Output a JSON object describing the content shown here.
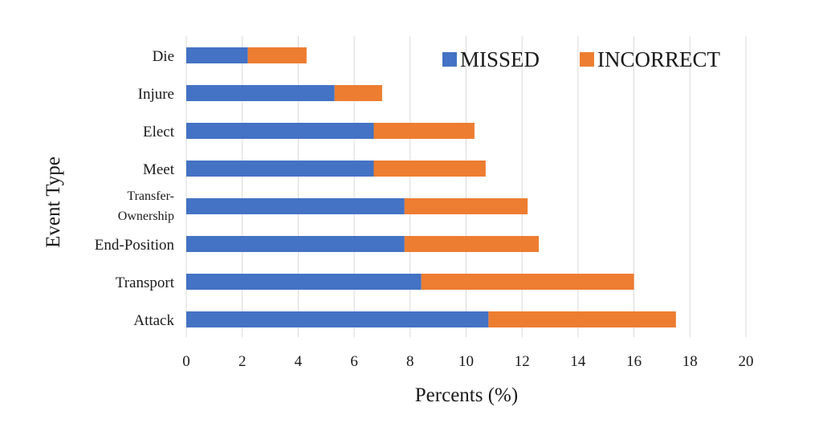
{
  "chart_data": {
    "type": "bar",
    "orientation": "horizontal",
    "stacked": true,
    "categories": [
      "Die",
      "Injure",
      "Elect",
      "Meet",
      "Transfer-Ownership",
      "End-Position",
      "Transport",
      "Attack"
    ],
    "category_display": [
      [
        "Die"
      ],
      [
        "Injure"
      ],
      [
        "Elect"
      ],
      [
        "Meet"
      ],
      [
        "Transfer-",
        "Ownership"
      ],
      [
        "End-Position"
      ],
      [
        "Transport"
      ],
      [
        "Attack"
      ]
    ],
    "series": [
      {
        "name": "MISSED",
        "color": "#4472c4",
        "values": [
          2.2,
          5.3,
          6.7,
          6.7,
          7.8,
          7.8,
          8.4,
          10.8
        ]
      },
      {
        "name": "INCORRECT",
        "color": "#ed7d31",
        "values": [
          2.1,
          1.7,
          3.6,
          4.0,
          4.4,
          4.8,
          7.6,
          6.7
        ]
      }
    ],
    "xlabel": "Percents (%)",
    "ylabel": "Event Type",
    "xlim": [
      0,
      20
    ],
    "xticks": [
      "0",
      "2",
      "4",
      "6",
      "8",
      "10",
      "12",
      "14",
      "16",
      "18",
      "20"
    ],
    "grid": "vertical",
    "legend": "top-right"
  }
}
